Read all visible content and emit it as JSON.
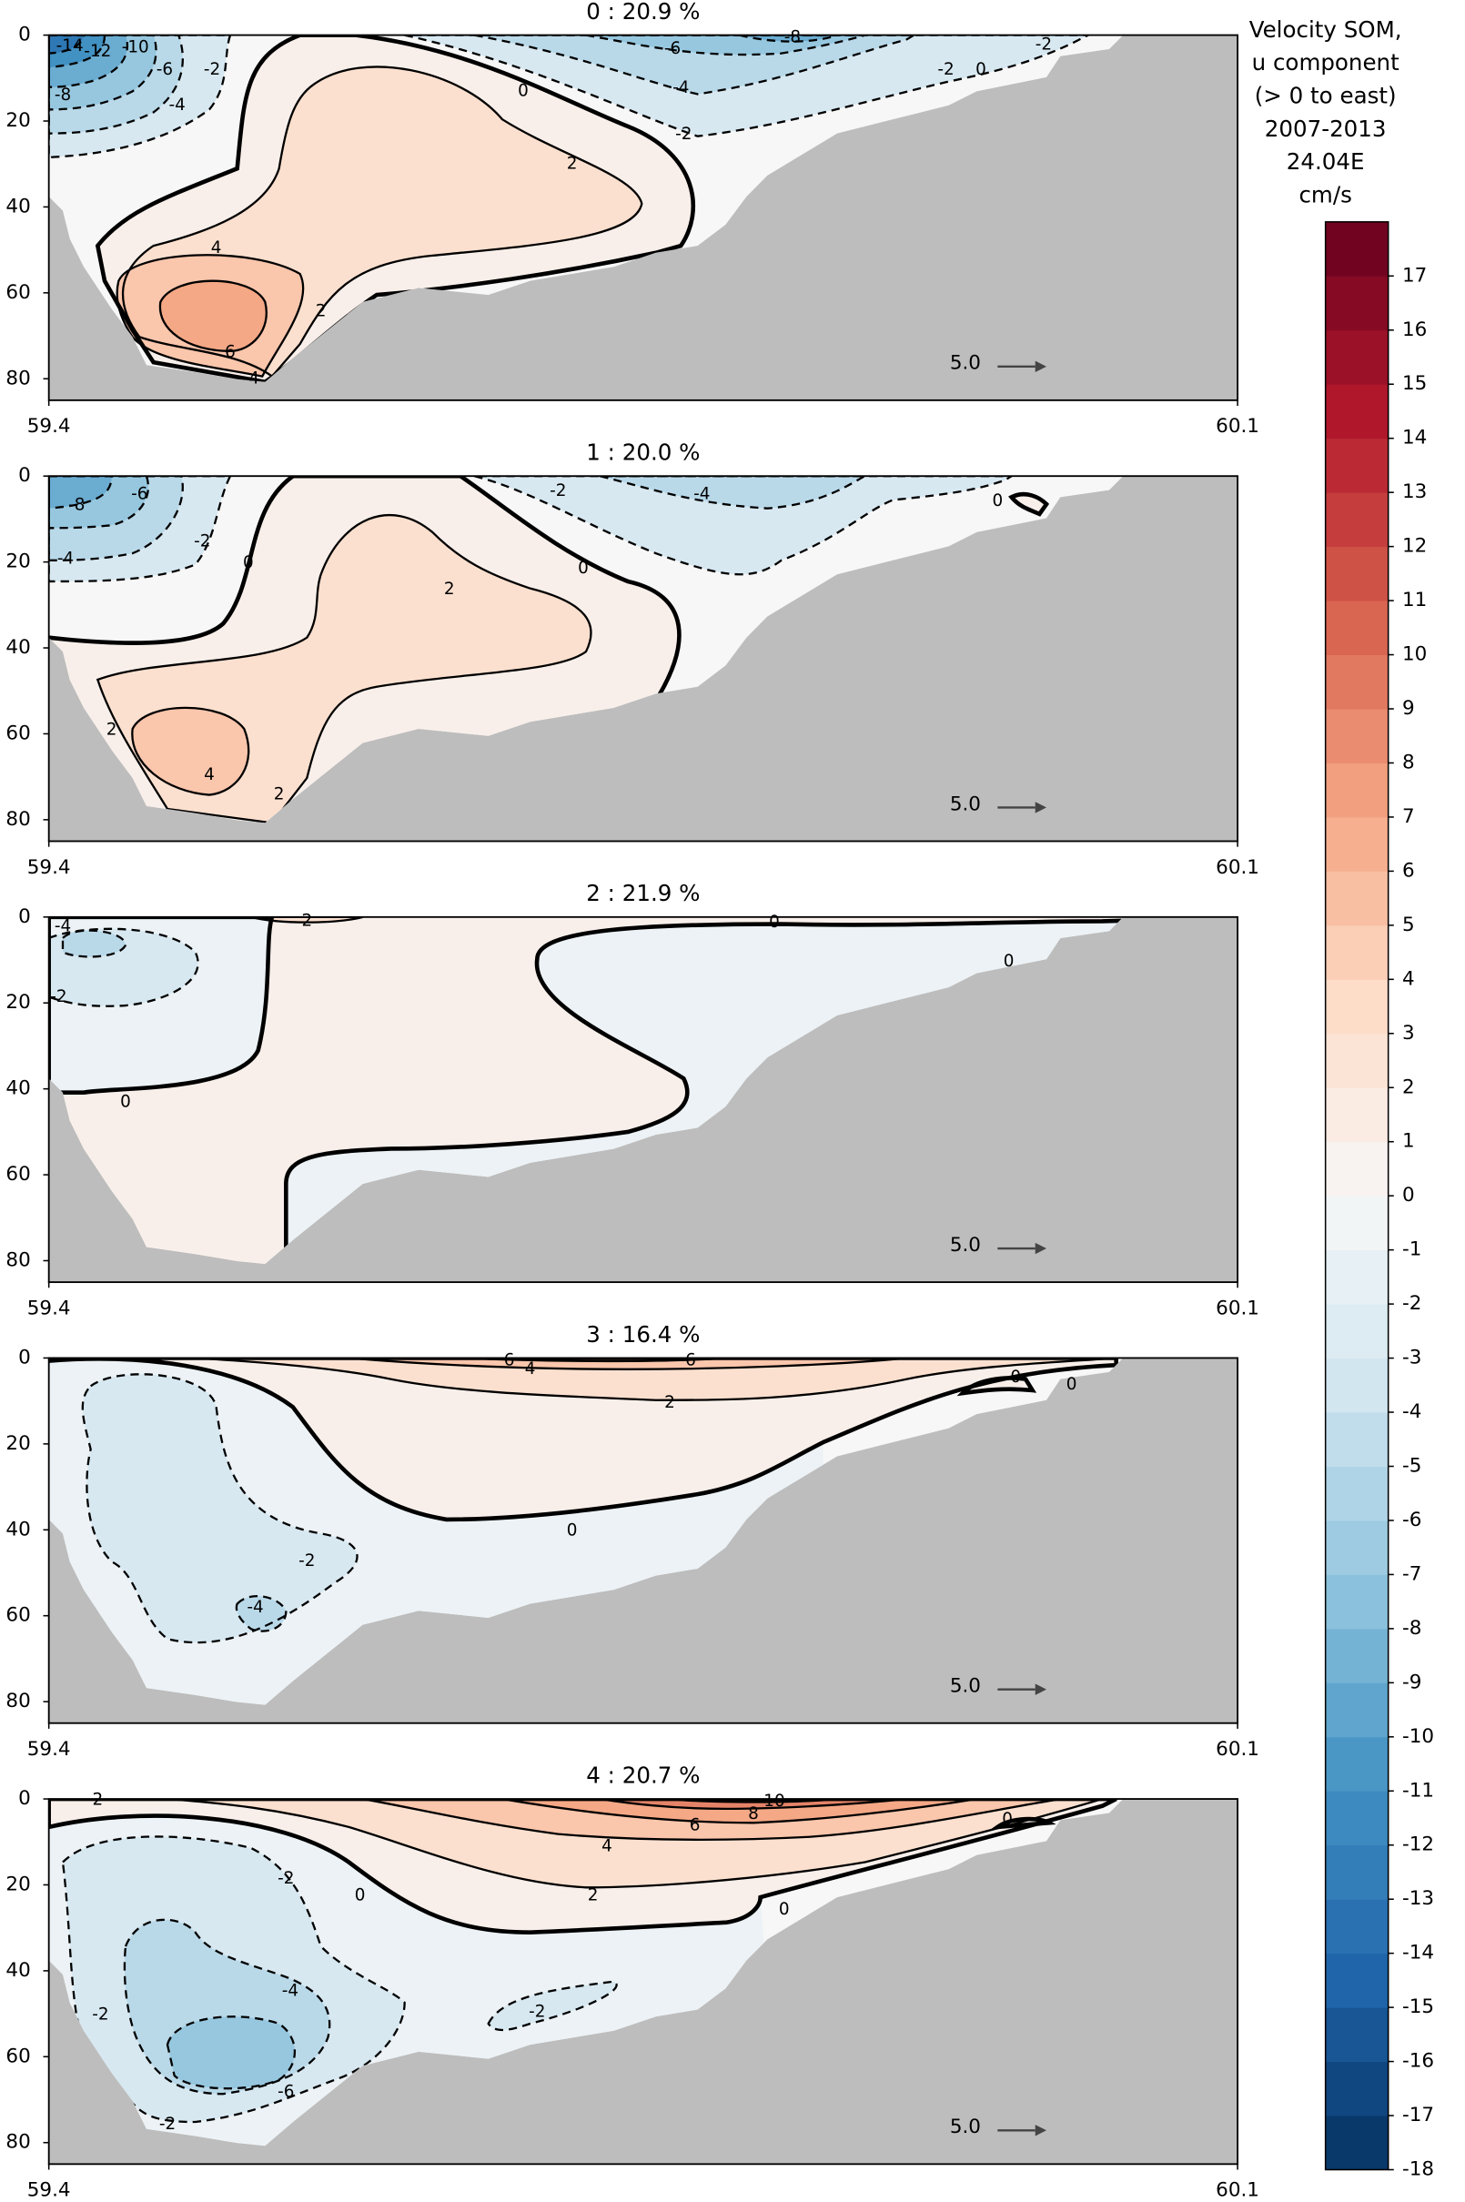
{
  "chart_data": [
    {
      "type": "contour",
      "title": "0 : 20.9 %",
      "xlim": [
        59.4,
        60.1
      ],
      "xticks": [
        59.4,
        60.1
      ],
      "ylim": [
        0,
        85
      ],
      "yticks": [
        0,
        20,
        40,
        60,
        80
      ],
      "y_inverted": true,
      "contour_labels": [
        -14,
        -12,
        -10,
        -8,
        -6,
        -4,
        -2,
        0,
        2,
        4,
        6,
        2,
        4,
        -6,
        -8,
        -4,
        -2,
        -2,
        0,
        -2
      ],
      "reference_arrow": {
        "value": 5,
        "label": "5.0"
      }
    },
    {
      "type": "contour",
      "title": "1 : 20.0 %",
      "xlim": [
        59.4,
        60.1
      ],
      "xticks": [
        59.4,
        60.1
      ],
      "ylim": [
        0,
        85
      ],
      "yticks": [
        0,
        20,
        40,
        60,
        80
      ],
      "y_inverted": true,
      "contour_labels": [
        -8,
        -6,
        -4,
        -2,
        0,
        2,
        0,
        -2,
        -4,
        0,
        4,
        2,
        2
      ],
      "reference_arrow": {
        "value": 5,
        "label": "5.0"
      }
    },
    {
      "type": "contour",
      "title": "2 : 21.9 %",
      "xlim": [
        59.4,
        60.1
      ],
      "xticks": [
        59.4,
        60.1
      ],
      "ylim": [
        0,
        85
      ],
      "yticks": [
        0,
        20,
        40,
        60,
        80
      ],
      "y_inverted": true,
      "contour_labels": [
        -4,
        -2,
        0,
        2,
        0,
        0
      ],
      "reference_arrow": {
        "value": 5,
        "label": "5.0"
      }
    },
    {
      "type": "contour",
      "title": "3 : 16.4 %",
      "xlim": [
        59.4,
        60.1
      ],
      "xticks": [
        59.4,
        60.1
      ],
      "ylim": [
        0,
        85
      ],
      "yticks": [
        0,
        20,
        40,
        60,
        80
      ],
      "y_inverted": true,
      "contour_labels": [
        6,
        4,
        6,
        2,
        0,
        0,
        0,
        -2,
        -4
      ],
      "reference_arrow": {
        "value": 5,
        "label": "5.0"
      }
    },
    {
      "type": "contour",
      "title": "4 : 20.7 %",
      "xlim": [
        59.4,
        60.1
      ],
      "xticks": [
        59.4,
        60.1
      ],
      "ylim": [
        0,
        85
      ],
      "yticks": [
        0,
        20,
        40,
        60,
        80
      ],
      "y_inverted": true,
      "contour_labels": [
        2,
        -2,
        0,
        10,
        8,
        6,
        4,
        2,
        0,
        0,
        -4,
        -2,
        -2,
        -6,
        -2
      ],
      "reference_arrow": {
        "value": 5,
        "label": "5.0"
      }
    }
  ],
  "colorbar": {
    "title": [
      "Velocity SOM,",
      "u component",
      "(> 0 to east)",
      "2007-2013",
      "24.04E",
      "cm/s"
    ],
    "colormap": "RdBu_r",
    "lim": [
      -18,
      18
    ],
    "ticks": [
      -18,
      -17,
      -16,
      -15,
      -14,
      -13,
      -12,
      -11,
      -10,
      -9,
      -8,
      -7,
      -6,
      -5,
      -4,
      -3,
      -2,
      -1,
      0,
      1,
      2,
      3,
      4,
      5,
      6,
      7,
      8,
      9,
      10,
      11,
      12,
      13,
      14,
      15,
      16,
      17
    ]
  }
}
